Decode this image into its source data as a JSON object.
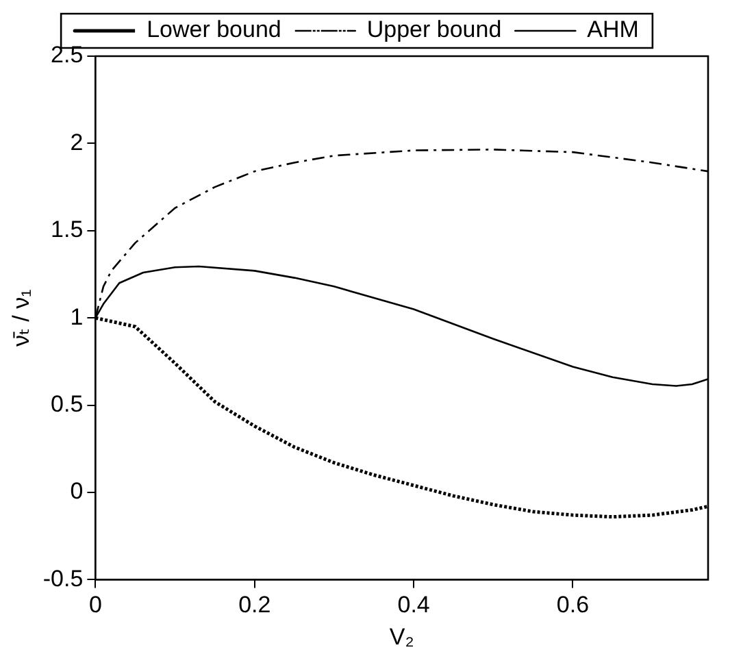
{
  "chart_data": {
    "type": "line",
    "xlabel": "V₂",
    "ylabel": "ν̄ₜ / ν₁",
    "xlim": [
      0,
      0.77
    ],
    "ylim": [
      -0.5,
      2.5
    ],
    "xticks": [
      0,
      0.2,
      0.4,
      0.6
    ],
    "yticks": [
      -0.5,
      0,
      0.5,
      1,
      1.5,
      2,
      2.5
    ],
    "grid": false,
    "legend": "top",
    "marker": "none",
    "series": [
      {
        "name": "Lower bound",
        "color": "#000000",
        "line_style": "dotted",
        "x": [
          0,
          0.05,
          0.1,
          0.15,
          0.2,
          0.25,
          0.3,
          0.35,
          0.4,
          0.45,
          0.5,
          0.55,
          0.6,
          0.65,
          0.7,
          0.75,
          0.77
        ],
        "values": [
          1.0,
          0.95,
          0.74,
          0.52,
          0.38,
          0.26,
          0.17,
          0.1,
          0.04,
          -0.02,
          -0.07,
          -0.11,
          -0.13,
          -0.14,
          -0.13,
          -0.1,
          -0.08
        ]
      },
      {
        "name": "Upper bound",
        "color": "#000000",
        "line_style": "dashed",
        "x": [
          0,
          0.01,
          0.02,
          0.05,
          0.1,
          0.15,
          0.2,
          0.25,
          0.3,
          0.4,
          0.5,
          0.6,
          0.7,
          0.77
        ],
        "values": [
          1.0,
          1.18,
          1.27,
          1.43,
          1.63,
          1.75,
          1.84,
          1.89,
          1.93,
          1.96,
          1.965,
          1.95,
          1.89,
          1.84
        ]
      },
      {
        "name": "AHM",
        "color": "#000000",
        "line_style": "solid",
        "x": [
          0,
          0.01,
          0.03,
          0.06,
          0.1,
          0.13,
          0.2,
          0.25,
          0.3,
          0.4,
          0.5,
          0.6,
          0.65,
          0.7,
          0.73,
          0.75,
          0.77
        ],
        "values": [
          1.0,
          1.08,
          1.2,
          1.26,
          1.29,
          1.295,
          1.27,
          1.23,
          1.18,
          1.05,
          0.88,
          0.72,
          0.66,
          0.62,
          0.61,
          0.62,
          0.65
        ]
      }
    ]
  }
}
